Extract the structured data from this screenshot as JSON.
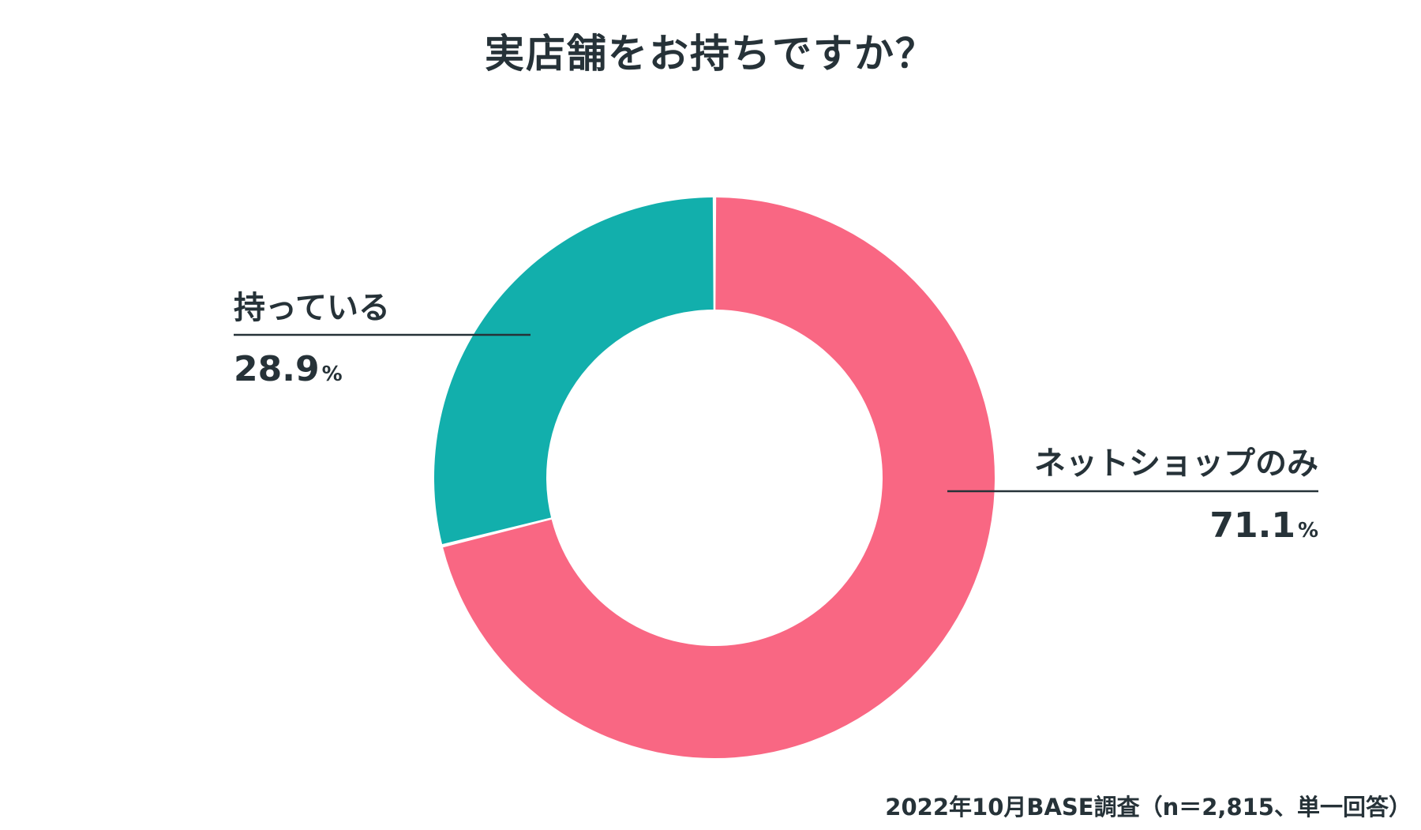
{
  "chart_data": {
    "type": "pie",
    "donut": true,
    "title": "実店舗をお持ちですか？",
    "unit": "%",
    "start": "12 o'clock",
    "direction": "clockwise",
    "slices": [
      {
        "label": "ネットショップのみ",
        "value": 71.1,
        "value_text": "71.1",
        "color": "#F96783",
        "label_side": "right"
      },
      {
        "label": "持っている",
        "value": 28.9,
        "value_text": "28.9",
        "color": "#12AFAC",
        "label_side": "left"
      }
    ]
  },
  "source": "2022年10月BASE調査（n＝2,815、単一回答）"
}
